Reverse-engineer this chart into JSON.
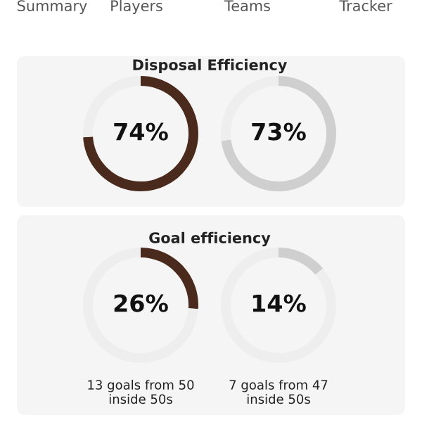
{
  "chart_data": [
    {
      "type": "other",
      "annotations": [
        "Summary",
        "Players",
        "Teams",
        "Tracker"
      ]
    },
    {
      "type": "donut",
      "title": "Disposal Efficiency",
      "categories": [
        null,
        null
      ],
      "values": [
        74,
        26
      ],
      "colors": [
        "#4a2a1c",
        "#eeeeee"
      ],
      "annotations": [
        "74%"
      ]
    },
    {
      "type": "donut",
      "categories": [
        null,
        null
      ],
      "values": [
        73,
        27
      ],
      "colors": [
        "#cfcfcf",
        "#eeeeee"
      ],
      "annotations": [
        "73%"
      ]
    },
    {
      "type": "donut",
      "title": "Goal efficiency",
      "categories": [
        null,
        null
      ],
      "values": [
        26,
        74
      ],
      "colors": [
        "#4a2a1c",
        "#eeeeee"
      ],
      "annotations": [
        "26%",
        "13 goals from 50\ninside 50s"
      ]
    },
    {
      "type": "donut",
      "categories": [
        null,
        null
      ],
      "values": [
        14,
        86
      ],
      "colors": [
        "#cfcfcf",
        "#eeeeee"
      ],
      "annotations": [
        "14%",
        "7 goals from 47\ninside 50s"
      ]
    }
  ]
}
